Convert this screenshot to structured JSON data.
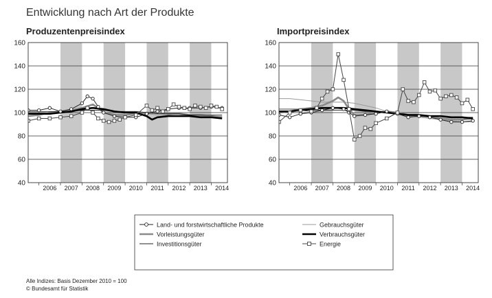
{
  "page": {
    "title": "Entwicklung nach Art der Produkte",
    "footnote": "Alle Indizes: Basis Dezember 2010 = 100",
    "source": "© Bundesamt für Statistik"
  },
  "legend": {
    "items": [
      {
        "key": "land",
        "label": "Land- und forstwirtschaftliche Produkte"
      },
      {
        "key": "vorl",
        "label": "Vorleistungsgüter"
      },
      {
        "key": "inv",
        "label": "Investitionsgüter"
      },
      {
        "key": "gebr",
        "label": "Gebrauchsgüter"
      },
      {
        "key": "verb",
        "label": "Verbrauchsgüter"
      },
      {
        "key": "energie",
        "label": "Energie"
      }
    ]
  },
  "colors": {
    "band": "#c8c8c8",
    "land": "#222222",
    "vorl": "#8a8a8a",
    "inv": "#222222",
    "gebr": "#9a9a9a",
    "verb": "#000000",
    "energie": "#444444"
  },
  "chart_data": [
    {
      "type": "line",
      "title": "Produzentenpreisindex",
      "ylim": [
        40,
        160
      ],
      "yticks": [
        40,
        60,
        80,
        100,
        120,
        140,
        160
      ],
      "xlim": [
        2005.5,
        2014.75
      ],
      "xticks": [
        "2006",
        "2007",
        "2008",
        "2009",
        "2010",
        "2011",
        "2012",
        "2013",
        "2014"
      ],
      "shaded_years": [
        "2007",
        "2009",
        "2011",
        "2013"
      ],
      "series": [
        {
          "key": "land",
          "name": "Land- und forstwirtschaftliche Produkte",
          "x": [
            2005.5,
            2006,
            2006.5,
            2007,
            2007.5,
            2008,
            2008.25,
            2008.5,
            2008.75,
            2009,
            2009.5,
            2010,
            2010.5,
            2011,
            2011.5,
            2012,
            2012.5,
            2013,
            2013.5,
            2014,
            2014.5
          ],
          "values": [
            102,
            102,
            104,
            101,
            103,
            108,
            114,
            112,
            105,
            100,
            97,
            96,
            96,
            99,
            101,
            103,
            104,
            104,
            104,
            105,
            104
          ]
        },
        {
          "key": "vorl",
          "name": "Vorleistungsgüter",
          "x": [
            2005.5,
            2006,
            2006.5,
            2007,
            2007.5,
            2008,
            2008.5,
            2008.75,
            2009,
            2009.5,
            2010,
            2010.5,
            2011,
            2011.5,
            2012,
            2012.5,
            2013,
            2013.5,
            2014,
            2014.5
          ],
          "values": [
            97,
            98,
            100,
            101,
            102,
            104,
            107,
            104,
            100,
            98,
            98,
            99,
            100,
            100,
            99,
            99,
            98,
            98,
            97,
            96
          ]
        },
        {
          "key": "inv",
          "name": "Investitionsgüter",
          "x": [
            2005.5,
            2006,
            2006.5,
            2007,
            2007.5,
            2008,
            2008.5,
            2009,
            2009.5,
            2010,
            2010.5,
            2011,
            2011.5,
            2012,
            2012.5,
            2013,
            2013.5,
            2014,
            2014.5
          ],
          "values": [
            101,
            101,
            101,
            101,
            101,
            102,
            102,
            102,
            101,
            101,
            101,
            100,
            99,
            99,
            99,
            98,
            98,
            98,
            98
          ]
        },
        {
          "key": "gebr",
          "name": "Gebrauchsgüter",
          "x": [
            2005.5,
            2006,
            2006.5,
            2007,
            2007.5,
            2008,
            2008.5,
            2009,
            2009.5,
            2010,
            2010.5,
            2011,
            2011.5,
            2012,
            2012.5,
            2013,
            2013.5,
            2014,
            2014.5
          ],
          "values": [
            99,
            99,
            100,
            100,
            101,
            102,
            102,
            102,
            101,
            100,
            100,
            99,
            98,
            98,
            97,
            97,
            97,
            97,
            97
          ]
        },
        {
          "key": "verb",
          "name": "Verbrauchsgüter",
          "x": [
            2005.5,
            2006,
            2006.5,
            2007,
            2007.5,
            2008,
            2008.5,
            2009,
            2009.5,
            2010,
            2010.5,
            2011,
            2011.25,
            2011.5,
            2012,
            2012.5,
            2013,
            2013.5,
            2014,
            2014.5
          ],
          "values": [
            99,
            99,
            99,
            100,
            101,
            103,
            104,
            103,
            101,
            100,
            100,
            97,
            94,
            96,
            97,
            97,
            97,
            96,
            96,
            95
          ]
        },
        {
          "key": "energie",
          "name": "Energie",
          "x": [
            2005.5,
            2006,
            2006.5,
            2007,
            2007.5,
            2008,
            2008.25,
            2008.5,
            2008.75,
            2009,
            2009.25,
            2009.5,
            2009.75,
            2010,
            2010.5,
            2011,
            2011.25,
            2011.5,
            2011.75,
            2012,
            2012.25,
            2012.5,
            2012.75,
            2013,
            2013.25,
            2013.5,
            2013.75,
            2014,
            2014.25,
            2014.5
          ],
          "values": [
            93,
            95,
            95,
            96,
            97,
            100,
            104,
            100,
            95,
            93,
            92,
            93,
            94,
            96,
            98,
            106,
            102,
            104,
            101,
            103,
            107,
            105,
            104,
            103,
            106,
            105,
            104,
            106,
            105,
            103
          ]
        }
      ]
    },
    {
      "type": "line",
      "title": "Importpreisindex",
      "ylim": [
        40,
        160
      ],
      "yticks": [
        40,
        60,
        80,
        100,
        120,
        140,
        160
      ],
      "xlim": [
        2005.5,
        2014.75
      ],
      "xticks": [
        "2006",
        "2007",
        "2008",
        "2009",
        "2010",
        "2011",
        "2012",
        "2013",
        "2014"
      ],
      "shaded_years": [
        "2007",
        "2009",
        "2011",
        "2013"
      ],
      "series": [
        {
          "key": "land",
          "name": "Land- und forstwirtschaftliche Produkte",
          "x": [
            2005.5,
            2006,
            2006.5,
            2007,
            2007.5,
            2008,
            2008.5,
            2008.75,
            2009,
            2009.5,
            2010,
            2010.5,
            2011,
            2011.5,
            2012,
            2012.5,
            2013,
            2013.5,
            2014,
            2014.5
          ],
          "values": [
            98,
            96,
            99,
            100,
            102,
            104,
            103,
            100,
            97,
            98,
            99,
            101,
            99,
            96,
            97,
            96,
            94,
            92,
            92,
            93
          ]
        },
        {
          "key": "vorl",
          "name": "Vorleistungsgüter",
          "x": [
            2005.5,
            2006,
            2006.5,
            2007,
            2007.5,
            2008,
            2008.25,
            2008.5,
            2008.75,
            2009,
            2009.5,
            2010,
            2010.5,
            2011,
            2011.5,
            2012,
            2012.5,
            2013,
            2013.5,
            2014,
            2014.5
          ],
          "values": [
            100,
            101,
            103,
            104,
            106,
            110,
            113,
            110,
            103,
            98,
            98,
            100,
            101,
            100,
            98,
            97,
            97,
            95,
            94,
            94,
            95
          ]
        },
        {
          "key": "inv",
          "name": "Investitionsgüter",
          "x": [
            2005.5,
            2006,
            2006.5,
            2007,
            2007.5,
            2008,
            2008.5,
            2009,
            2009.5,
            2010,
            2010.5,
            2011,
            2011.5,
            2012,
            2012.5,
            2013,
            2013.5,
            2014,
            2014.5
          ],
          "values": [
            103,
            103,
            103,
            102,
            102,
            102,
            102,
            102,
            101,
            101,
            100,
            99,
            98,
            98,
            97,
            97,
            96,
            96,
            96
          ]
        },
        {
          "key": "gebr",
          "name": "Gebrauchsgüter",
          "x": [
            2005.5,
            2006,
            2006.5,
            2007,
            2007.5,
            2008,
            2008.5,
            2009,
            2009.5,
            2010,
            2010.5,
            2011,
            2011.5,
            2012,
            2012.5,
            2013,
            2013.5,
            2014,
            2014.5
          ],
          "values": [
            112,
            112,
            111,
            110,
            109,
            109,
            109,
            108,
            106,
            104,
            101,
            99,
            97,
            96,
            95,
            94,
            93,
            92,
            92
          ]
        },
        {
          "key": "verb",
          "name": "Verbrauchsgüter",
          "x": [
            2005.5,
            2006,
            2006.5,
            2007,
            2007.5,
            2008,
            2008.5,
            2009,
            2009.5,
            2010,
            2010.5,
            2011,
            2011.5,
            2012,
            2012.5,
            2013,
            2013.5,
            2014,
            2014.5
          ],
          "values": [
            101,
            101,
            102,
            103,
            104,
            104,
            104,
            103,
            102,
            101,
            100,
            99,
            98,
            98,
            97,
            97,
            96,
            96,
            95
          ]
        },
        {
          "key": "energie",
          "name": "Energie",
          "x": [
            2005.5,
            2006,
            2006.5,
            2007,
            2007.25,
            2007.5,
            2007.75,
            2008,
            2008.25,
            2008.5,
            2008.75,
            2009,
            2009.25,
            2009.5,
            2009.75,
            2010,
            2010.5,
            2011,
            2011.25,
            2011.5,
            2011.75,
            2012,
            2012.25,
            2012.5,
            2012.75,
            2013,
            2013.25,
            2013.5,
            2013.75,
            2014,
            2014.25,
            2014.5
          ],
          "values": [
            92,
            100,
            102,
            101,
            104,
            112,
            118,
            120,
            150,
            128,
            103,
            77,
            80,
            87,
            86,
            91,
            95,
            100,
            120,
            110,
            109,
            115,
            126,
            118,
            119,
            112,
            114,
            115,
            113,
            108,
            111,
            103
          ]
        }
      ]
    }
  ]
}
